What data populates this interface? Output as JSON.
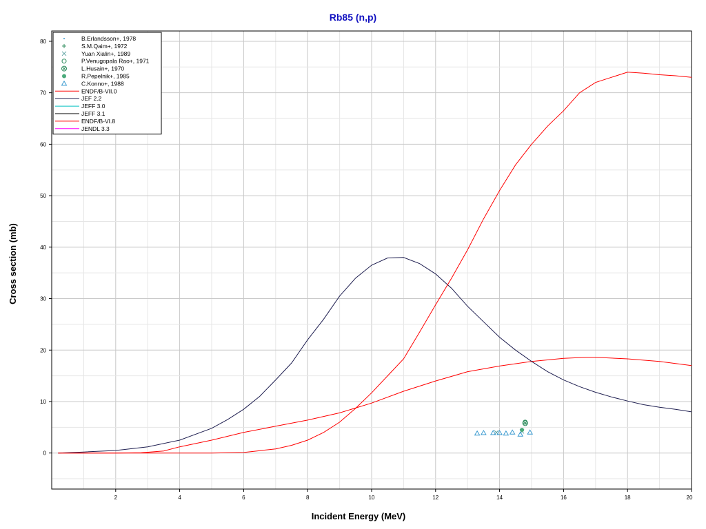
{
  "chart_data": {
    "type": "line",
    "title": "Rb85 (n,p)",
    "xlabel": "Incident Energy (MeV)",
    "ylabel": "Cross section (mb)",
    "xlim": [
      0,
      20
    ],
    "ylim": [
      -7,
      82
    ],
    "x_ticks": [
      2,
      4,
      6,
      8,
      10,
      12,
      14,
      16,
      18,
      20
    ],
    "y_ticks": [
      0,
      10,
      20,
      30,
      40,
      50,
      60,
      70,
      80
    ],
    "grid": true,
    "legend_position": "top-left",
    "experimental": [
      {
        "name": "B.Erlandsson+, 1978",
        "marker": "dot",
        "color": "#3a9ad0",
        "points": []
      },
      {
        "name": "S.M.Qaim+, 1972",
        "marker": "plus",
        "color": "#2a8a5a",
        "points": []
      },
      {
        "name": "Yuan Xialin+, 1989",
        "marker": "x",
        "color": "#5aa0a0",
        "points": [
          [
            13.9,
            4.0
          ],
          [
            14.7,
            4.2
          ]
        ]
      },
      {
        "name": "P.Venugopala Rao+, 1971",
        "marker": "circle",
        "color": "#2a8a5a",
        "points": [
          [
            14.8,
            6.0
          ]
        ]
      },
      {
        "name": "L.Husain+, 1970",
        "marker": "circle-x",
        "color": "#2a8a5a",
        "points": [
          [
            14.8,
            5.8
          ]
        ]
      },
      {
        "name": "R.Pepelnik+, 1985",
        "marker": "filled-circle",
        "color": "#4aaa7a",
        "points": [
          [
            14.7,
            4.5
          ]
        ]
      },
      {
        "name": "C.Konno+, 1988",
        "marker": "triangle",
        "color": "#3a9ad0",
        "points": [
          [
            13.3,
            3.8
          ],
          [
            13.5,
            3.9
          ],
          [
            13.8,
            3.9
          ],
          [
            14.0,
            3.9
          ],
          [
            14.2,
            3.8
          ],
          [
            14.4,
            4.0
          ],
          [
            14.65,
            3.6
          ],
          [
            14.95,
            4.0
          ]
        ]
      }
    ],
    "series": [
      {
        "name": "ENDF/B-VII.0",
        "color": "#ff0000",
        "x": [
          0.2,
          2,
          2.8,
          3.5,
          4,
          5,
          6,
          7,
          8,
          9,
          10,
          11,
          12,
          13,
          14,
          15,
          16,
          16.7,
          17,
          18,
          19,
          20
        ],
        "y": [
          0,
          0,
          0.05,
          0.4,
          1.2,
          2.5,
          4.0,
          5.2,
          6.4,
          7.8,
          9.7,
          12.0,
          14.0,
          15.8,
          16.9,
          17.8,
          18.4,
          18.6,
          18.6,
          18.3,
          17.8,
          17.0
        ]
      },
      {
        "name": "JEF 2.2",
        "color": "#1e1e50",
        "x": [
          0.2,
          1,
          2,
          3,
          4,
          5,
          5.5,
          6,
          6.5,
          7,
          7.5,
          8,
          8.5,
          9,
          9.5,
          10,
          10.5,
          11,
          11.5,
          12,
          12.5,
          13,
          13.5,
          14,
          14.5,
          15,
          15.5,
          16,
          16.5,
          17,
          17.5,
          18,
          18.5,
          19,
          19.5,
          20
        ],
        "y": [
          0,
          0.2,
          0.5,
          1.2,
          2.5,
          4.8,
          6.5,
          8.5,
          11.0,
          14.2,
          17.5,
          22.0,
          26.0,
          30.5,
          34.0,
          36.5,
          37.9,
          38.0,
          36.8,
          34.8,
          32.0,
          28.5,
          25.5,
          22.5,
          20.0,
          17.8,
          15.8,
          14.2,
          12.9,
          11.8,
          10.9,
          10.1,
          9.4,
          8.9,
          8.5,
          8.0
        ]
      },
      {
        "name": "JEFF 3.0",
        "color": "#00c0c0",
        "x": [],
        "y": []
      },
      {
        "name": "JEFF 3.1",
        "color": "#000000",
        "x": [],
        "y": []
      },
      {
        "name": "ENDF/B-VI.8",
        "color": "#ff0000",
        "x": [
          0.2,
          3,
          4,
          5,
          6,
          7,
          7.5,
          8,
          8.5,
          9,
          9.5,
          10,
          10.5,
          11,
          11.5,
          12,
          12.5,
          13,
          13.5,
          14,
          14.5,
          15,
          15.5,
          16,
          16.5,
          17,
          17.5,
          18,
          18.5,
          19,
          19.5,
          20
        ],
        "y": [
          0,
          0,
          0,
          0,
          0.1,
          0.8,
          1.5,
          2.5,
          4.0,
          6.0,
          8.7,
          11.7,
          15.0,
          18.3,
          23.5,
          28.8,
          34.0,
          39.5,
          45.5,
          51.0,
          56.0,
          60.0,
          63.5,
          66.5,
          70.0,
          72.0,
          73.0,
          74.0,
          73.8,
          73.5,
          73.3,
          73.0
        ]
      },
      {
        "name": "JENDL 3.3",
        "color": "#ff00ff",
        "x": [],
        "y": []
      }
    ]
  }
}
